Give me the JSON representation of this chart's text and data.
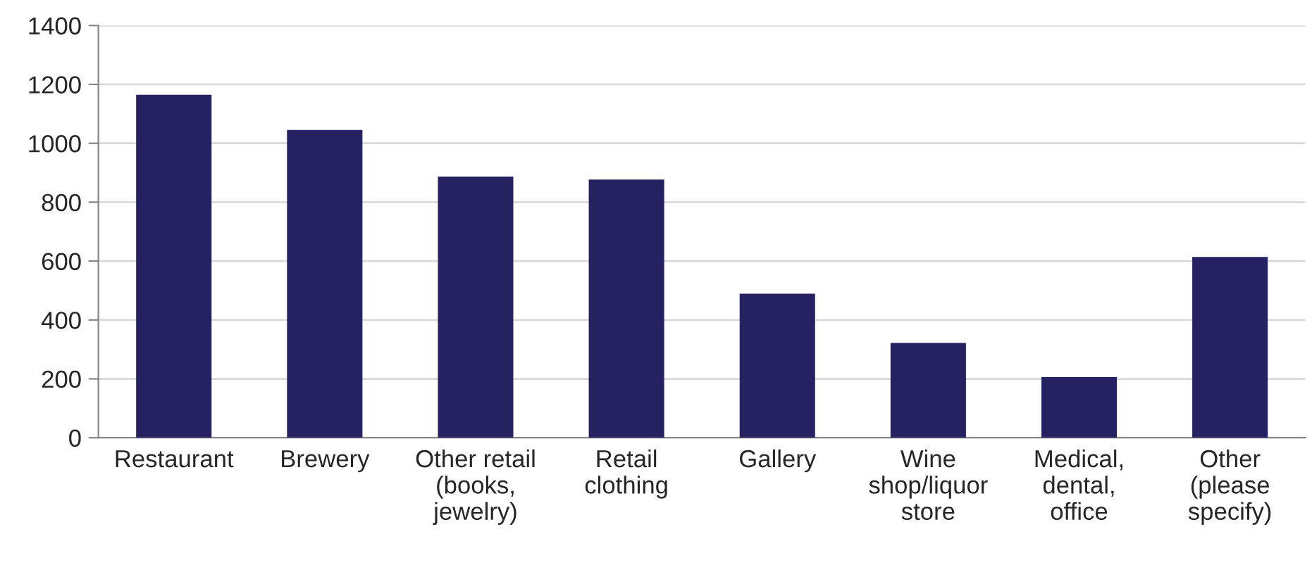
{
  "chart_data": {
    "type": "bar",
    "categories": [
      "Restaurant",
      "Brewery",
      "Other retail\n(books,\njewelry)",
      "Retail\nclothing",
      "Gallery",
      "Wine\nshop/liquor\nstore",
      "Medical,\ndental,\noffice",
      "Other\n(please\nspecify)"
    ],
    "values": [
      1165,
      1045,
      887,
      877,
      489,
      322,
      206,
      614
    ],
    "color": "#262262",
    "ylim": [
      0,
      1400
    ],
    "yticks": [
      0,
      200,
      400,
      600,
      800,
      1000,
      1200,
      1400
    ],
    "grid": "y"
  }
}
